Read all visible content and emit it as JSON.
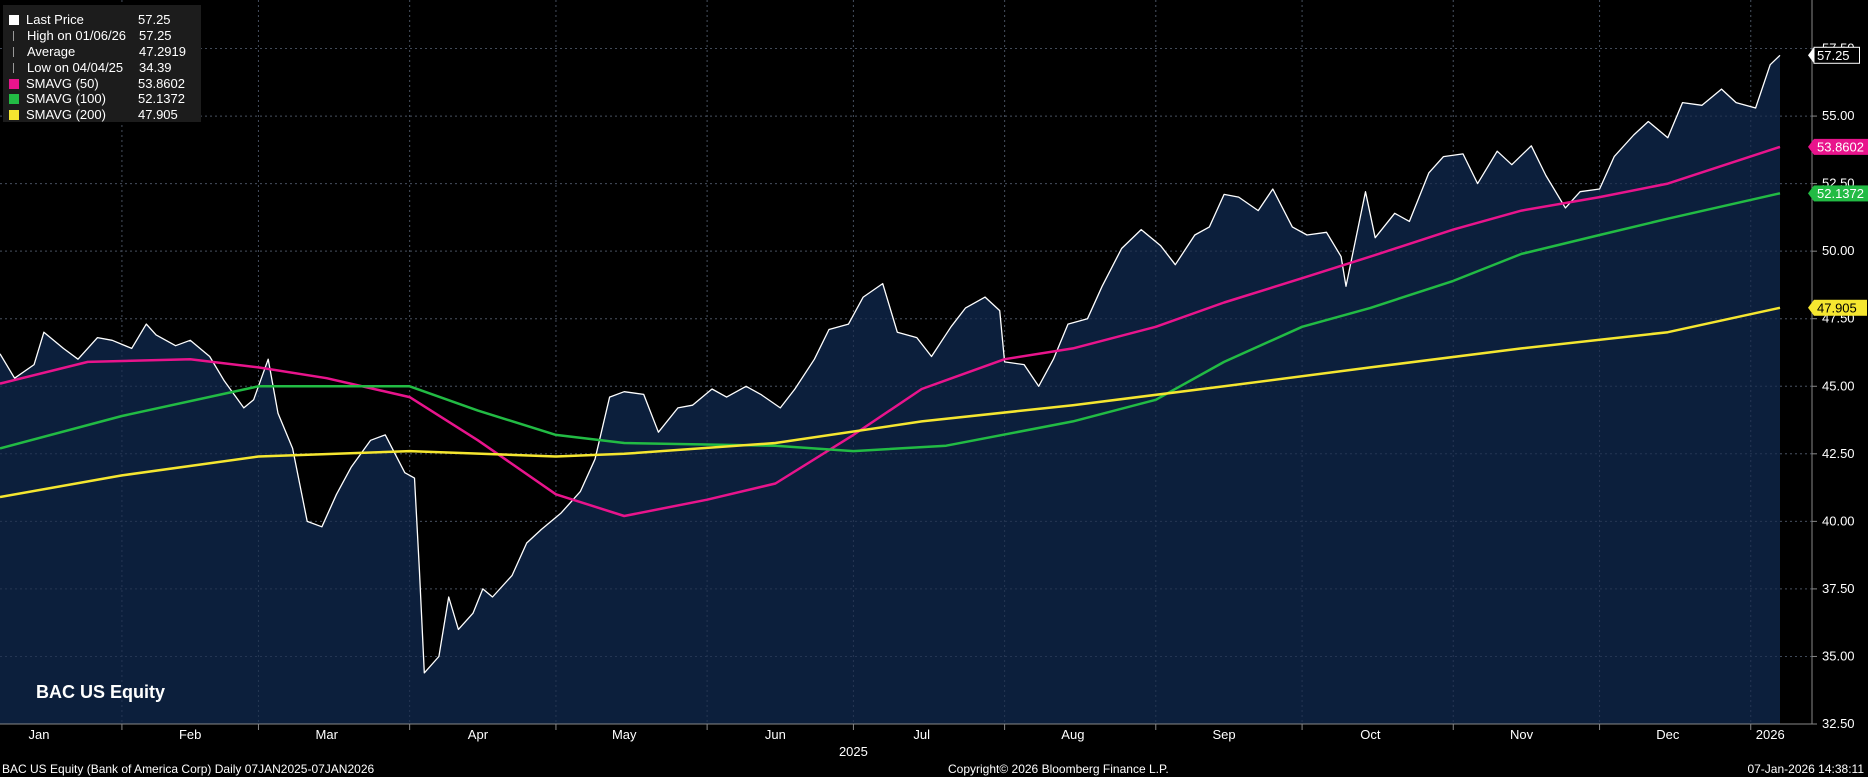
{
  "legend": [
    {
      "label": "Last Price",
      "value": "57.25",
      "symbol": "square",
      "color": "#ffffff"
    },
    {
      "label": "High on 01/06/26",
      "value": "57.25",
      "symbol": "high-marker",
      "color": "#999999"
    },
    {
      "label": "Average",
      "value": "47.2919",
      "symbol": "avg-marker",
      "color": "#999999"
    },
    {
      "label": "Low on 04/04/25",
      "value": "34.39",
      "symbol": "low-marker",
      "color": "#999999"
    },
    {
      "label": "SMAVG (50)",
      "value": "53.8602",
      "symbol": "square",
      "color": "#e8148c"
    },
    {
      "label": "SMAVG (100)",
      "value": "52.1372",
      "symbol": "square",
      "color": "#22bb44"
    },
    {
      "label": "SMAVG (200)",
      "value": "47.905",
      "symbol": "square",
      "color": "#f5e630"
    }
  ],
  "ticker_label": "BAC US Equity",
  "footer": {
    "left": "BAC US Equity (Bank of America Corp) Daily 07JAN2025-07JAN2026",
    "center": "Copyright© 2026 Bloomberg Finance L.P.",
    "right": "07-Jan-2026 14:38:11"
  },
  "colors": {
    "background": "#000000",
    "area_fill": "#0c1f3c",
    "price_line": "#ffffff",
    "sma50": "#e8148c",
    "sma100": "#22bb44",
    "sma200": "#f5e630",
    "grid": "#4a4a4a"
  },
  "chart_data": {
    "type": "line",
    "x_start": "2025-01-07",
    "x_end": "2026-01-07",
    "ylim": [
      32.5,
      59.0
    ],
    "y_ticks": [
      "32.50",
      "35.00",
      "37.50",
      "40.00",
      "42.50",
      "45.00",
      "47.50",
      "50.00",
      "52.50",
      "55.00",
      "57.50"
    ],
    "x_month_labels": [
      {
        "label": "Jan",
        "date": "2025-01-15"
      },
      {
        "label": "Feb",
        "date": "2025-02-15"
      },
      {
        "label": "Mar",
        "date": "2025-03-15"
      },
      {
        "label": "Apr",
        "date": "2025-04-15"
      },
      {
        "label": "May",
        "date": "2025-05-15"
      },
      {
        "label": "Jun",
        "date": "2025-06-15"
      },
      {
        "label": "Jul",
        "date": "2025-07-15"
      },
      {
        "label": "Aug",
        "date": "2025-08-15"
      },
      {
        "label": "Sep",
        "date": "2025-09-15"
      },
      {
        "label": "Oct",
        "date": "2025-10-15"
      },
      {
        "label": "Nov",
        "date": "2025-11-15"
      },
      {
        "label": "Dec",
        "date": "2025-12-15"
      },
      {
        "label": "2026",
        "date": "2026-01-05"
      }
    ],
    "x_month_separators": [
      "2025-02-01",
      "2025-03-01",
      "2025-04-01",
      "2025-05-01",
      "2025-06-01",
      "2025-07-01",
      "2025-08-01",
      "2025-09-01",
      "2025-10-01",
      "2025-11-01",
      "2025-12-01",
      "2026-01-01"
    ],
    "year_label": {
      "label": "2025",
      "date": "2025-07-01"
    },
    "series": [
      {
        "name": "Last Price",
        "color": "#ffffff",
        "area": true,
        "points": [
          [
            "2025-01-07",
            46.2
          ],
          [
            "2025-01-10",
            45.3
          ],
          [
            "2025-01-14",
            45.8
          ],
          [
            "2025-01-16",
            47.0
          ],
          [
            "2025-01-20",
            46.4
          ],
          [
            "2025-01-23",
            46.0
          ],
          [
            "2025-01-27",
            46.8
          ],
          [
            "2025-01-30",
            46.7
          ],
          [
            "2025-02-03",
            46.4
          ],
          [
            "2025-02-06",
            47.3
          ],
          [
            "2025-02-08",
            46.9
          ],
          [
            "2025-02-12",
            46.5
          ],
          [
            "2025-02-15",
            46.7
          ],
          [
            "2025-02-19",
            46.1
          ],
          [
            "2025-02-22",
            45.2
          ],
          [
            "2025-02-26",
            44.2
          ],
          [
            "2025-02-28",
            44.5
          ],
          [
            "2025-03-03",
            46.0
          ],
          [
            "2025-03-05",
            44.0
          ],
          [
            "2025-03-08",
            42.7
          ],
          [
            "2025-03-11",
            40.0
          ],
          [
            "2025-03-14",
            39.8
          ],
          [
            "2025-03-17",
            41.0
          ],
          [
            "2025-03-20",
            42.0
          ],
          [
            "2025-03-24",
            43.0
          ],
          [
            "2025-03-27",
            43.2
          ],
          [
            "2025-03-31",
            41.8
          ],
          [
            "2025-04-02",
            41.6
          ],
          [
            "2025-04-03",
            38.2
          ],
          [
            "2025-04-04",
            34.39
          ],
          [
            "2025-04-07",
            35.0
          ],
          [
            "2025-04-09",
            37.2
          ],
          [
            "2025-04-11",
            36.0
          ],
          [
            "2025-04-14",
            36.6
          ],
          [
            "2025-04-16",
            37.5
          ],
          [
            "2025-04-18",
            37.2
          ],
          [
            "2025-04-22",
            38.0
          ],
          [
            "2025-04-25",
            39.2
          ],
          [
            "2025-04-28",
            39.7
          ],
          [
            "2025-05-02",
            40.3
          ],
          [
            "2025-05-06",
            41.1
          ],
          [
            "2025-05-09",
            42.3
          ],
          [
            "2025-05-12",
            44.6
          ],
          [
            "2025-05-15",
            44.8
          ],
          [
            "2025-05-19",
            44.7
          ],
          [
            "2025-05-22",
            43.3
          ],
          [
            "2025-05-26",
            44.2
          ],
          [
            "2025-05-29",
            44.3
          ],
          [
            "2025-06-02",
            44.9
          ],
          [
            "2025-06-05",
            44.6
          ],
          [
            "2025-06-09",
            45.0
          ],
          [
            "2025-06-12",
            44.7
          ],
          [
            "2025-06-16",
            44.2
          ],
          [
            "2025-06-19",
            44.9
          ],
          [
            "2025-06-23",
            46.0
          ],
          [
            "2025-06-26",
            47.1
          ],
          [
            "2025-06-30",
            47.3
          ],
          [
            "2025-07-03",
            48.3
          ],
          [
            "2025-07-07",
            48.8
          ],
          [
            "2025-07-10",
            47.0
          ],
          [
            "2025-07-14",
            46.8
          ],
          [
            "2025-07-17",
            46.1
          ],
          [
            "2025-07-21",
            47.2
          ],
          [
            "2025-07-24",
            47.9
          ],
          [
            "2025-07-28",
            48.3
          ],
          [
            "2025-07-31",
            47.8
          ],
          [
            "2025-08-01",
            45.9
          ],
          [
            "2025-08-05",
            45.8
          ],
          [
            "2025-08-08",
            45.0
          ],
          [
            "2025-08-11",
            46.0
          ],
          [
            "2025-08-14",
            47.3
          ],
          [
            "2025-08-18",
            47.5
          ],
          [
            "2025-08-21",
            48.7
          ],
          [
            "2025-08-25",
            50.1
          ],
          [
            "2025-08-29",
            50.8
          ],
          [
            "2025-09-02",
            50.2
          ],
          [
            "2025-09-05",
            49.5
          ],
          [
            "2025-09-09",
            50.6
          ],
          [
            "2025-09-12",
            50.9
          ],
          [
            "2025-09-15",
            52.1
          ],
          [
            "2025-09-18",
            52.0
          ],
          [
            "2025-09-22",
            51.5
          ],
          [
            "2025-09-25",
            52.3
          ],
          [
            "2025-09-29",
            50.9
          ],
          [
            "2025-10-02",
            50.6
          ],
          [
            "2025-10-06",
            50.7
          ],
          [
            "2025-10-09",
            49.8
          ],
          [
            "2025-10-10",
            48.7
          ],
          [
            "2025-10-14",
            52.2
          ],
          [
            "2025-10-16",
            50.5
          ],
          [
            "2025-10-20",
            51.4
          ],
          [
            "2025-10-23",
            51.1
          ],
          [
            "2025-10-27",
            52.9
          ],
          [
            "2025-10-30",
            53.5
          ],
          [
            "2025-11-03",
            53.6
          ],
          [
            "2025-11-06",
            52.5
          ],
          [
            "2025-11-10",
            53.7
          ],
          [
            "2025-11-13",
            53.2
          ],
          [
            "2025-11-17",
            53.9
          ],
          [
            "2025-11-20",
            52.8
          ],
          [
            "2025-11-24",
            51.6
          ],
          [
            "2025-11-27",
            52.2
          ],
          [
            "2025-12-01",
            52.3
          ],
          [
            "2025-12-04",
            53.5
          ],
          [
            "2025-12-08",
            54.3
          ],
          [
            "2025-12-11",
            54.8
          ],
          [
            "2025-12-15",
            54.2
          ],
          [
            "2025-12-18",
            55.5
          ],
          [
            "2025-12-22",
            55.4
          ],
          [
            "2025-12-26",
            56.0
          ],
          [
            "2025-12-29",
            55.5
          ],
          [
            "2026-01-02",
            55.3
          ],
          [
            "2026-01-05",
            56.9
          ],
          [
            "2026-01-07",
            57.25
          ]
        ]
      },
      {
        "name": "SMAVG (50)",
        "color": "#e8148c",
        "points": [
          [
            "2025-01-07",
            45.1
          ],
          [
            "2025-01-25",
            45.9
          ],
          [
            "2025-02-15",
            46.0
          ],
          [
            "2025-03-01",
            45.7
          ],
          [
            "2025-03-15",
            45.3
          ],
          [
            "2025-04-01",
            44.6
          ],
          [
            "2025-04-15",
            43.0
          ],
          [
            "2025-05-01",
            41.0
          ],
          [
            "2025-05-15",
            40.2
          ],
          [
            "2025-06-01",
            40.8
          ],
          [
            "2025-06-15",
            41.4
          ],
          [
            "2025-07-01",
            43.2
          ],
          [
            "2025-07-15",
            44.9
          ],
          [
            "2025-08-01",
            46.0
          ],
          [
            "2025-08-15",
            46.4
          ],
          [
            "2025-09-01",
            47.2
          ],
          [
            "2025-09-15",
            48.1
          ],
          [
            "2025-10-01",
            49.0
          ],
          [
            "2025-10-15",
            49.8
          ],
          [
            "2025-11-01",
            50.8
          ],
          [
            "2025-11-15",
            51.5
          ],
          [
            "2025-12-01",
            52.0
          ],
          [
            "2025-12-15",
            52.5
          ],
          [
            "2026-01-07",
            53.86
          ]
        ]
      },
      {
        "name": "SMAVG (100)",
        "color": "#22bb44",
        "points": [
          [
            "2025-01-07",
            42.7
          ],
          [
            "2025-02-01",
            43.9
          ],
          [
            "2025-03-01",
            45.0
          ],
          [
            "2025-04-01",
            45.0
          ],
          [
            "2025-04-15",
            44.1
          ],
          [
            "2025-05-01",
            43.2
          ],
          [
            "2025-05-15",
            42.9
          ],
          [
            "2025-06-15",
            42.8
          ],
          [
            "2025-07-01",
            42.6
          ],
          [
            "2025-07-20",
            42.8
          ],
          [
            "2025-08-15",
            43.7
          ],
          [
            "2025-09-01",
            44.5
          ],
          [
            "2025-09-15",
            45.9
          ],
          [
            "2025-10-01",
            47.2
          ],
          [
            "2025-10-15",
            47.9
          ],
          [
            "2025-11-01",
            48.9
          ],
          [
            "2025-11-15",
            49.9
          ],
          [
            "2025-12-01",
            50.6
          ],
          [
            "2025-12-15",
            51.2
          ],
          [
            "2026-01-07",
            52.14
          ]
        ]
      },
      {
        "name": "SMAVG (200)",
        "color": "#f5e630",
        "points": [
          [
            "2025-01-07",
            40.9
          ],
          [
            "2025-02-01",
            41.7
          ],
          [
            "2025-03-01",
            42.4
          ],
          [
            "2025-04-01",
            42.6
          ],
          [
            "2025-05-01",
            42.4
          ],
          [
            "2025-05-15",
            42.5
          ],
          [
            "2025-06-15",
            42.9
          ],
          [
            "2025-07-15",
            43.7
          ],
          [
            "2025-08-15",
            44.3
          ],
          [
            "2025-09-15",
            45.0
          ],
          [
            "2025-10-15",
            45.7
          ],
          [
            "2025-11-15",
            46.4
          ],
          [
            "2025-12-15",
            47.0
          ],
          [
            "2026-01-07",
            47.905
          ]
        ]
      }
    ],
    "right_value_tags": [
      {
        "value": 57.25,
        "label": "57.25",
        "bg": "#000000",
        "fg": "#ffffff",
        "border": "#ffffff"
      },
      {
        "value": 53.8602,
        "label": "53.8602",
        "bg": "#e8148c",
        "fg": "#ffffff"
      },
      {
        "value": 52.1372,
        "label": "52.1372",
        "bg": "#22bb44",
        "fg": "#ffffff"
      },
      {
        "value": 47.905,
        "label": "47.905",
        "bg": "#f5e630",
        "fg": "#000000"
      }
    ]
  }
}
